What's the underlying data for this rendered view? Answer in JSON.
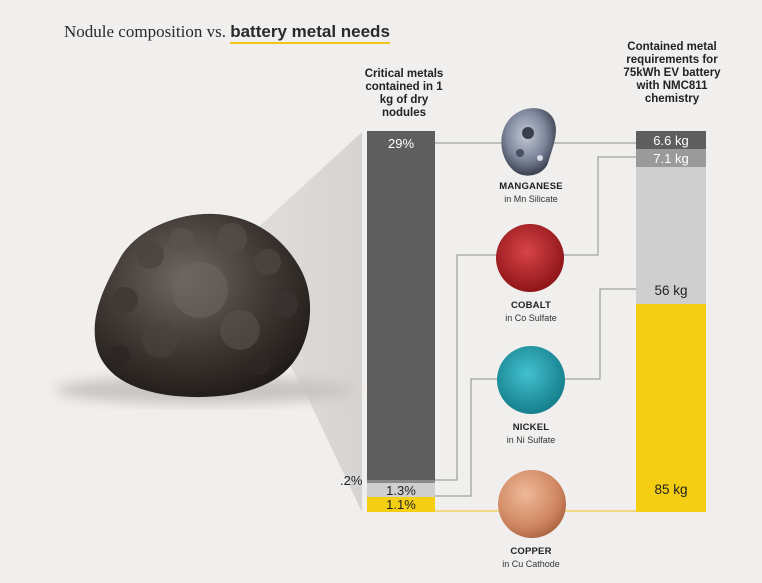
{
  "title": {
    "prefix": "Nodule composition vs.",
    "highlight": "battery metal needs"
  },
  "left_column": {
    "header": "Critical metals contained in 1 kg of dry nodules",
    "segments": [
      {
        "metal": "manganese",
        "label": "29%",
        "color": "#5e5e5e"
      },
      {
        "metal": "cobalt",
        "label": ".2%",
        "color": "#8a8a8a"
      },
      {
        "metal": "nickel",
        "label": "1.3%",
        "color": "#cfcfcf"
      },
      {
        "metal": "copper",
        "label": "1.1%",
        "color": "#f3ce12"
      }
    ]
  },
  "right_column": {
    "header": "Contained metal requirements for 75kWh EV battery with NMC811 chemistry",
    "segments": [
      {
        "metal": "manganese",
        "label": "6.6 kg",
        "color": "#5e5e5e"
      },
      {
        "metal": "cobalt",
        "label": "7.1 kg",
        "color": "#9a9a9a"
      },
      {
        "metal": "nickel",
        "label": "56 kg",
        "color": "#cfcfcf"
      },
      {
        "metal": "copper",
        "label": "85 kg",
        "color": "#f3ce12"
      }
    ]
  },
  "metals": [
    {
      "name": "MANGANESE",
      "form": "in Mn Silicate",
      "icon": "manganese-ore-icon",
      "color": "#8b93a8"
    },
    {
      "name": "COBALT",
      "form": "in Co Sulfate",
      "icon": "cobalt-sulfate-icon",
      "color": "#b8262a"
    },
    {
      "name": "NICKEL",
      "form": "in Ni Sulfate",
      "icon": "nickel-sulfate-icon",
      "color": "#1fa3b3"
    },
    {
      "name": "COPPER",
      "form": "in Cu Cathode",
      "icon": "copper-cathode-icon",
      "color": "#d28c63"
    }
  ]
}
